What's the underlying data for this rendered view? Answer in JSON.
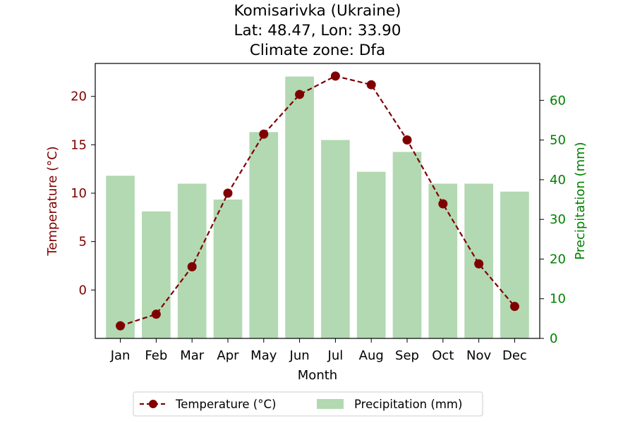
{
  "chart_data": {
    "type": "bar+line",
    "title_lines": [
      "Komisarivka (Ukraine)",
      "Lat: 48.47, Lon: 33.90",
      "Climate zone: Dfa"
    ],
    "xlabel": "Month",
    "categories": [
      "Jan",
      "Feb",
      "Mar",
      "Apr",
      "May",
      "Jun",
      "Jul",
      "Aug",
      "Sep",
      "Oct",
      "Nov",
      "Dec"
    ],
    "temperature": {
      "name": "Temperature (°C)",
      "axis_label": "Temperature (°C)",
      "color": "#800000",
      "values": [
        -3.7,
        -2.5,
        2.4,
        10.0,
        16.1,
        20.2,
        22.1,
        21.2,
        15.5,
        8.9,
        2.7,
        -1.7
      ],
      "ylim": [
        -5,
        23.4
      ],
      "ticks": [
        0,
        5,
        10,
        15,
        20
      ]
    },
    "precipitation": {
      "name": "Precipitation (mm)",
      "axis_label": "Precipitation (mm)",
      "color": "#008000",
      "bar_color": "#b2d9b2",
      "values": [
        41,
        32,
        39,
        35,
        52,
        66,
        50,
        42,
        47,
        39,
        39,
        37
      ],
      "ylim": [
        0,
        69.3
      ],
      "ticks": [
        0,
        10,
        20,
        30,
        40,
        50,
        60
      ]
    },
    "legend_position": "bottom-center"
  }
}
